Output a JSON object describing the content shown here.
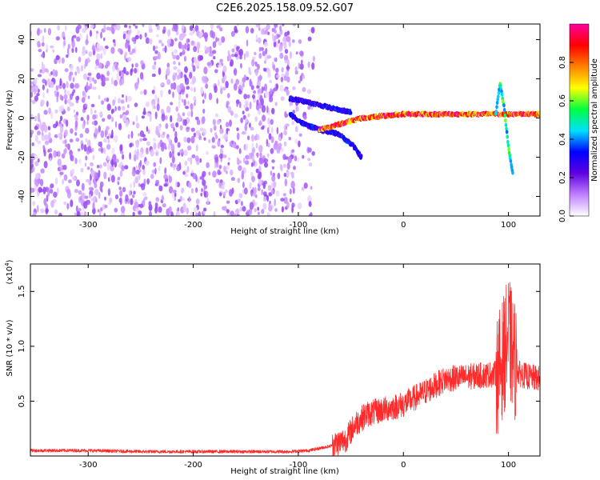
{
  "title": "C2E6.2025.158.09.52.G07",
  "chart_data": [
    {
      "type": "heatmap",
      "name": "spectrogram",
      "xlabel": "Height of straight line (km)",
      "ylabel": "Frequency (Hz)",
      "xlim": [
        -355,
        130
      ],
      "ylim": [
        -50,
        48
      ],
      "x_ticks": [
        "-300",
        "-200",
        "-100",
        "0",
        "100"
      ],
      "y_ticks": [
        "-40",
        "-20",
        "0",
        "20",
        "40"
      ],
      "colorbar": {
        "label": "Normalized spectral amplitude",
        "range": [
          0.0,
          1.0
        ],
        "ticks": [
          "0.0",
          "0.2",
          "0.4",
          "0.6",
          "0.8"
        ],
        "colormap": [
          "#ffffff",
          "#c080ff",
          "#6000e0",
          "#0000ff",
          "#00e0ff",
          "#00ff40",
          "#ffff00",
          "#ff8000",
          "#ff0000",
          "#ff00a0"
        ]
      },
      "features": [
        {
          "description": "broadband weak noise",
          "x_range": [
            -355,
            -95
          ],
          "y_range": [
            -50,
            48
          ],
          "amplitude": 0.1
        },
        {
          "description": "upper arc",
          "x": [
            -108,
            -90,
            -75,
            -60,
            -50
          ],
          "y": [
            10,
            8,
            6,
            4,
            3
          ],
          "amplitude": 0.3
        },
        {
          "description": "lower descending arc",
          "x": [
            -108,
            -95,
            -80,
            -62,
            -48,
            -40
          ],
          "y": [
            2,
            -3,
            -6,
            -8,
            -14,
            -20
          ],
          "amplitude": 0.3
        },
        {
          "description": "main signal band",
          "x": [
            -80,
            -40,
            0,
            40,
            88,
            130
          ],
          "y": [
            -6,
            0,
            2,
            2,
            2,
            2
          ],
          "amplitude": 0.85
        },
        {
          "description": "spike near 95 km",
          "x": [
            88,
            92,
            96,
            100,
            104
          ],
          "y": [
            2,
            18,
            5,
            -15,
            -28
          ],
          "amplitude": 0.5
        }
      ]
    },
    {
      "type": "line",
      "name": "snr",
      "xlabel": "Height of straight line (km)",
      "ylabel": "SNR (10 * v/v)",
      "y_multiplier": "(x10",
      "y_multiplier_exp": "4",
      "y_multiplier_close": ")",
      "xlim": [
        -355,
        130
      ],
      "ylim": [
        0.0,
        1.75
      ],
      "x_ticks": [
        "-300",
        "-200",
        "-100",
        "0",
        "100"
      ],
      "y_ticks": [
        "0.5",
        "1.0",
        "1.5"
      ],
      "series": [
        {
          "color": "#ff2a2a",
          "x": [
            -355,
            -300,
            -250,
            -200,
            -150,
            -110,
            -90,
            -70,
            -55,
            -45,
            -35,
            -20,
            0,
            20,
            40,
            60,
            80,
            90,
            95,
            100,
            105,
            110,
            120,
            130
          ],
          "y": [
            0.05,
            0.05,
            0.04,
            0.04,
            0.04,
            0.04,
            0.05,
            0.09,
            0.15,
            0.3,
            0.38,
            0.42,
            0.47,
            0.58,
            0.7,
            0.72,
            0.74,
            0.75,
            0.9,
            1.1,
            0.9,
            0.75,
            0.72,
            0.7
          ]
        }
      ]
    }
  ]
}
